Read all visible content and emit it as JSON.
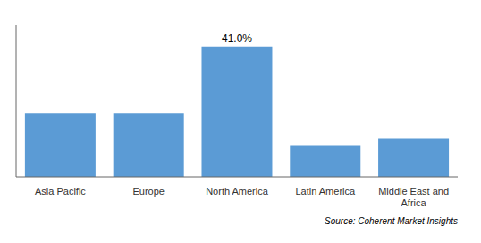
{
  "chart_data": {
    "type": "bar",
    "categories": [
      "Asia Pacific",
      "Europe",
      "North America",
      "Latin America",
      "Middle East and\nAfrica"
    ],
    "values": [
      20.0,
      20.0,
      41.0,
      10.0,
      12.0
    ],
    "color": "#5b9bd5",
    "ylim": [
      0,
      48
    ],
    "grid": false,
    "tick_labels": "x",
    "annotations": [
      {
        "text": "41.0%",
        "category": "North America"
      }
    ],
    "source": "Source: Coherent Market Insights"
  }
}
